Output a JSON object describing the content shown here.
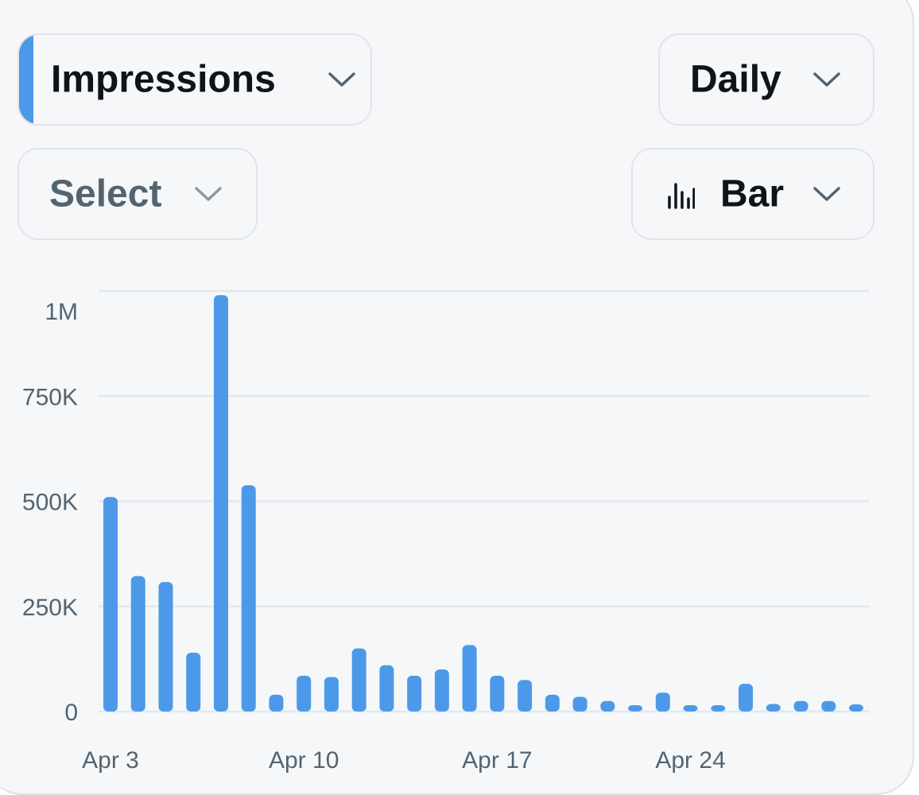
{
  "controls": {
    "metric": {
      "label": "Impressions",
      "icon": "chevron-down-icon"
    },
    "interval": {
      "label": "Daily",
      "icon": "chevron-down-icon"
    },
    "compare": {
      "label": "Select",
      "icon": "chevron-down-icon"
    },
    "chart_type": {
      "label": "Bar",
      "icon": "bar-chart-icon"
    }
  },
  "colors": {
    "accent": "#4d99e9",
    "bar": "#4d99e9",
    "grid": "#e3e8ee",
    "tick_text": "#536471",
    "text": "#0f1419"
  },
  "chart_data": {
    "type": "bar",
    "title": "",
    "xlabel": "",
    "ylabel": "",
    "ylim": [
      0,
      1000000
    ],
    "y_ticks": [
      {
        "value": 0,
        "label": "0"
      },
      {
        "value": 250000,
        "label": "250K"
      },
      {
        "value": 500000,
        "label": "500K"
      },
      {
        "value": 750000,
        "label": "750K"
      },
      {
        "value": 1000000,
        "label": "1M"
      }
    ],
    "x_tick_labels": [
      "Apr 3",
      "Apr 10",
      "Apr 17",
      "Apr 24"
    ],
    "grid": true,
    "legend": "none",
    "categories": [
      "Apr 3",
      "Apr 4",
      "Apr 5",
      "Apr 6",
      "Apr 7",
      "Apr 8",
      "Apr 9",
      "Apr 10",
      "Apr 11",
      "Apr 12",
      "Apr 13",
      "Apr 14",
      "Apr 15",
      "Apr 16",
      "Apr 17",
      "Apr 18",
      "Apr 19",
      "Apr 20",
      "Apr 21",
      "Apr 22",
      "Apr 23",
      "Apr 24",
      "Apr 25",
      "Apr 26",
      "Apr 27",
      "Apr 28",
      "Apr 29",
      "Apr 30"
    ],
    "values": [
      510000,
      322000,
      308000,
      140000,
      990000,
      538000,
      40000,
      85000,
      82000,
      150000,
      110000,
      85000,
      100000,
      158000,
      85000,
      75000,
      40000,
      35000,
      25000,
      12000,
      45000,
      10000,
      8000,
      66000,
      18000,
      25000,
      25000,
      17000
    ]
  }
}
